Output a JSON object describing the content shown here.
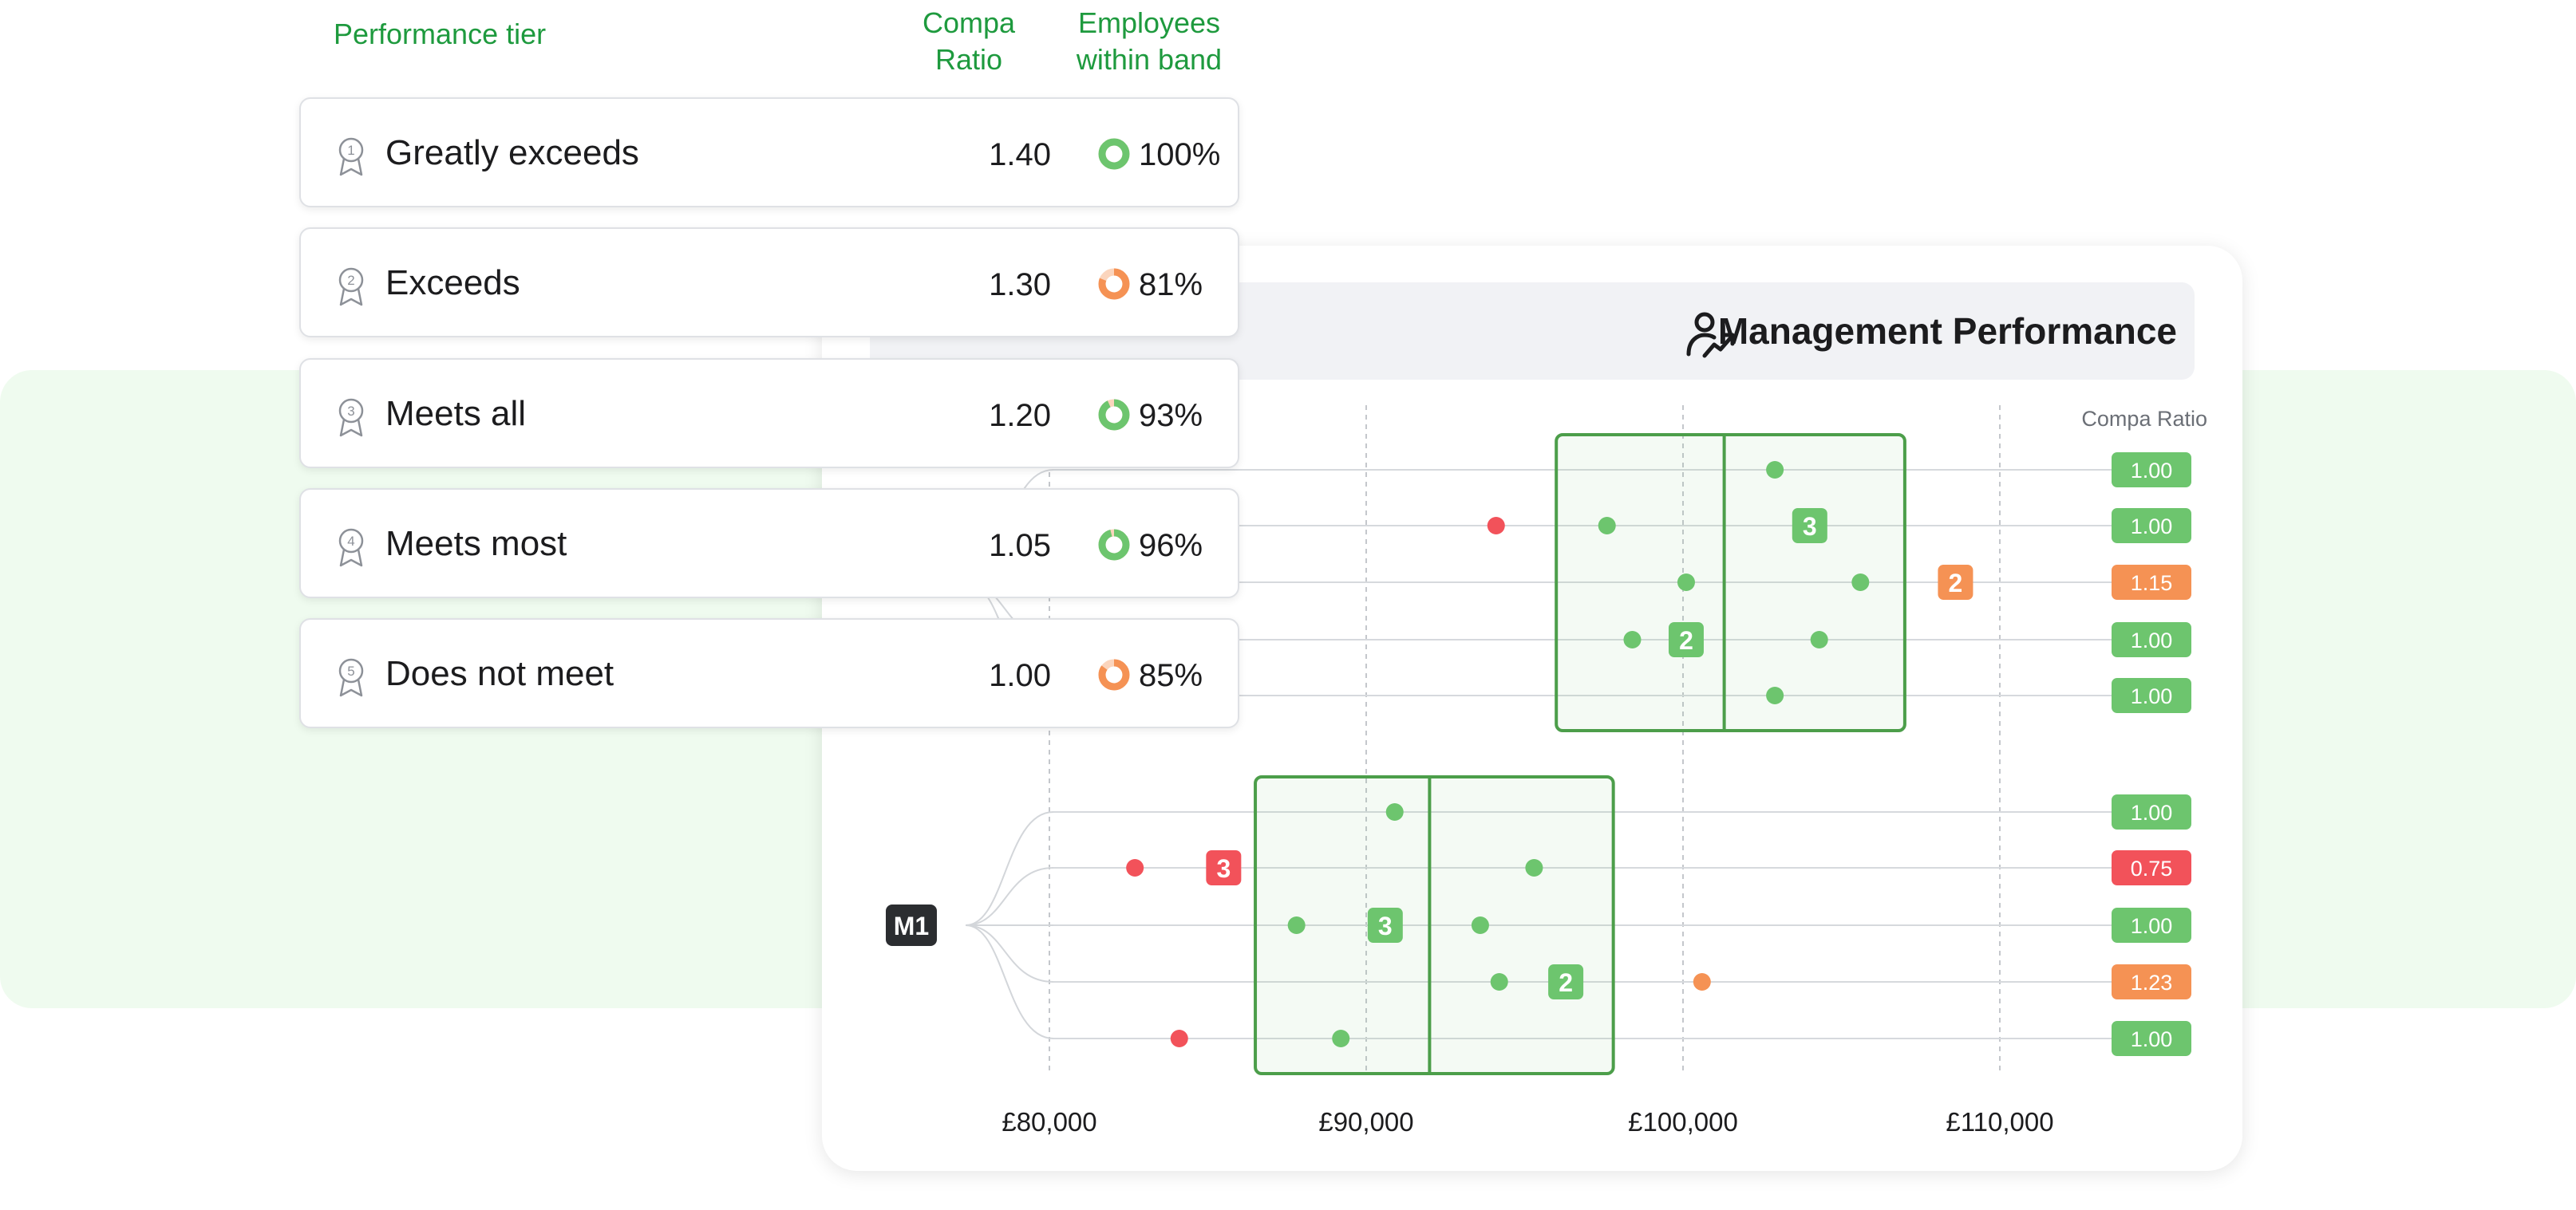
{
  "colors": {
    "green": "#6dc56e",
    "green_box": "#4c9e4a",
    "orange": "#f59254",
    "red": "#f2525a",
    "header_green": "#1e9a3e"
  },
  "table": {
    "headers": {
      "tier": "Performance tier",
      "compa_ratio": "Compa\nRatio",
      "employees": "Employees\nwithin band"
    },
    "rows": [
      {
        "num": "1",
        "label": "Greatly exceeds",
        "ratio": "1.40",
        "pct": "100%",
        "pct_value": 100,
        "status": "green",
        "icon": "award-ribbon-icon"
      },
      {
        "num": "2",
        "label": "Exceeds",
        "ratio": "1.30",
        "pct": "81%",
        "pct_value": 81,
        "status": "orange",
        "icon": "award-ribbon-icon"
      },
      {
        "num": "3",
        "label": "Meets all",
        "ratio": "1.20",
        "pct": "93%",
        "pct_value": 93,
        "status": "green",
        "icon": "award-ribbon-icon"
      },
      {
        "num": "4",
        "label": "Meets most",
        "ratio": "1.05",
        "pct": "96%",
        "pct_value": 96,
        "status": "green",
        "icon": "award-ribbon-icon"
      },
      {
        "num": "5",
        "label": "Does not meet",
        "ratio": "1.00",
        "pct": "85%",
        "pct_value": 85,
        "status": "orange",
        "icon": "award-ribbon-icon"
      }
    ]
  },
  "chart": {
    "title": "Management Performance",
    "title_icon": "user-trend-icon",
    "compa_label": "Compa Ratio",
    "x_ticks": [
      {
        "value": 80000,
        "label": "£80,000"
      },
      {
        "value": 90000,
        "label": "£90,000"
      },
      {
        "value": 100000,
        "label": "£100,000"
      },
      {
        "value": 110000,
        "label": "£110,000"
      }
    ],
    "groups": [
      {
        "label": "",
        "band": {
          "min": 96000,
          "mid": 101300,
          "max": 107000
        },
        "rows": [
          {
            "ratio": "1.00",
            "status": "green",
            "points": [
              {
                "x": 102900,
                "c": "green"
              }
            ]
          },
          {
            "ratio": "1.00",
            "status": "green",
            "points": [
              {
                "x": 94100,
                "c": "red"
              },
              {
                "x": 97600,
                "c": "green"
              },
              {
                "x": 104000,
                "c": "green",
                "count": "3"
              }
            ]
          },
          {
            "ratio": "1.15",
            "status": "orange",
            "points": [
              {
                "x": 100100,
                "c": "green"
              },
              {
                "x": 105600,
                "c": "green"
              },
              {
                "x": 108600,
                "c": "orange",
                "count": "2"
              }
            ]
          },
          {
            "ratio": "1.00",
            "status": "green",
            "points": [
              {
                "x": 98400,
                "c": "green"
              },
              {
                "x": 100100,
                "c": "green",
                "count": "2"
              },
              {
                "x": 104300,
                "c": "green"
              }
            ]
          },
          {
            "ratio": "1.00",
            "status": "green",
            "points": [
              {
                "x": 102900,
                "c": "green"
              }
            ]
          }
        ]
      },
      {
        "label": "M1",
        "band": {
          "min": 86500,
          "mid": 92000,
          "max": 97800
        },
        "rows": [
          {
            "ratio": "1.00",
            "status": "green",
            "points": [
              {
                "x": 90900,
                "c": "green"
              }
            ]
          },
          {
            "ratio": "0.75",
            "status": "red",
            "points": [
              {
                "x": 82700,
                "c": "red"
              },
              {
                "x": 85500,
                "c": "red",
                "count": "3"
              },
              {
                "x": 95300,
                "c": "green"
              }
            ]
          },
          {
            "ratio": "1.00",
            "status": "green",
            "points": [
              {
                "x": 87800,
                "c": "green"
              },
              {
                "x": 90600,
                "c": "green",
                "count": "3"
              },
              {
                "x": 93600,
                "c": "green"
              }
            ]
          },
          {
            "ratio": "1.23",
            "status": "orange",
            "points": [
              {
                "x": 94200,
                "c": "green"
              },
              {
                "x": 96300,
                "c": "green",
                "count": "2"
              },
              {
                "x": 100600,
                "c": "orange"
              }
            ]
          },
          {
            "ratio": "1.00",
            "status": "green",
            "points": [
              {
                "x": 84100,
                "c": "red"
              },
              {
                "x": 89200,
                "c": "green"
              }
            ]
          }
        ]
      }
    ]
  }
}
